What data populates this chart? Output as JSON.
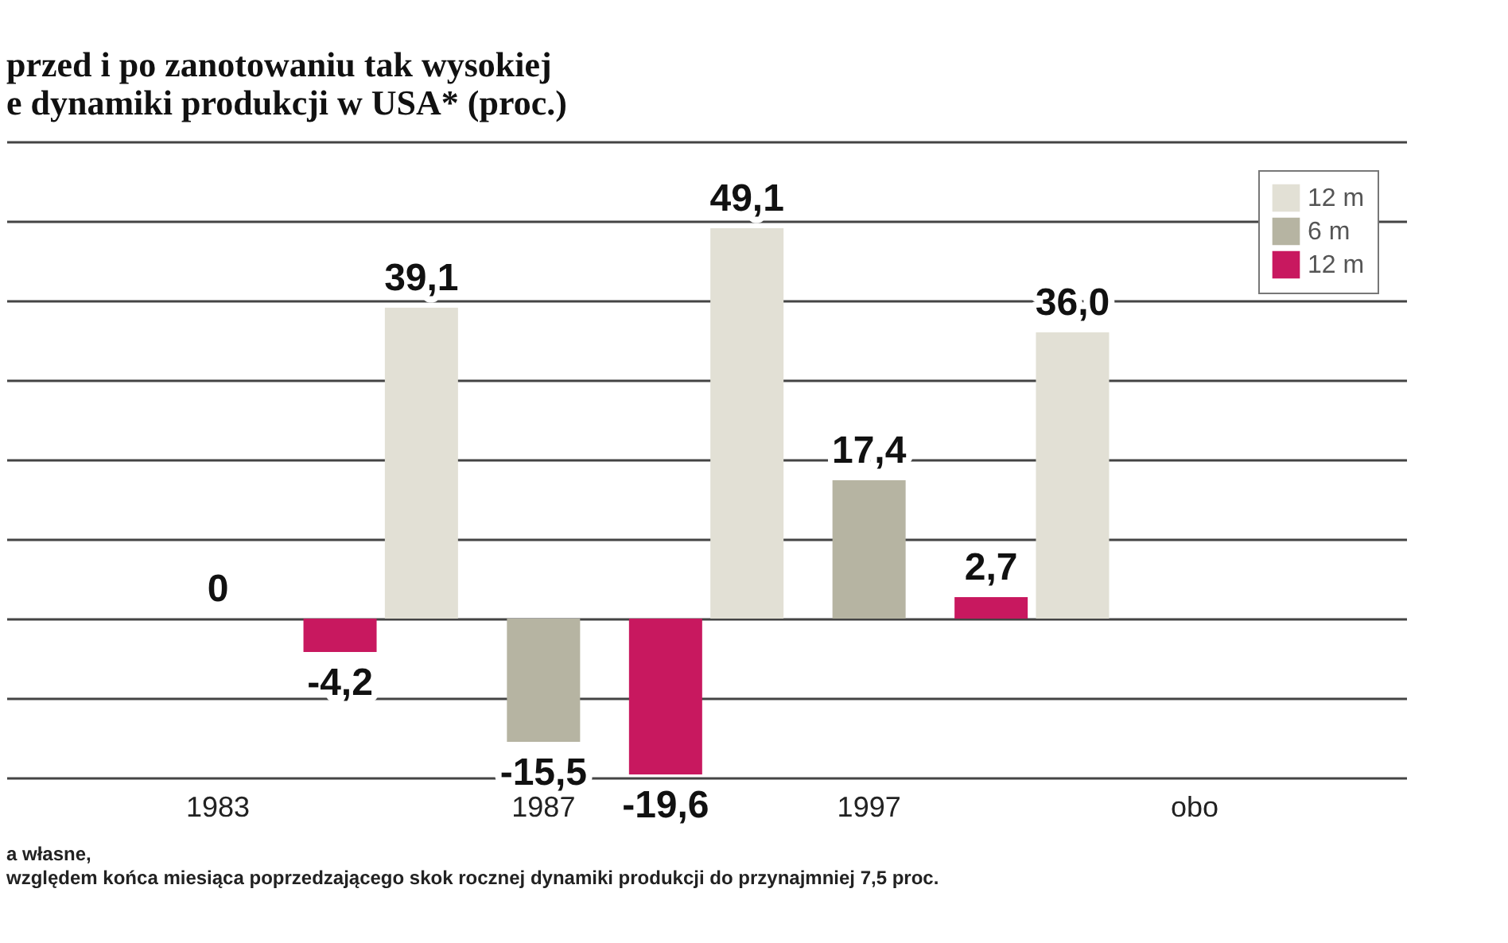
{
  "chart_data": {
    "type": "bar",
    "title": [
      "przed i po zanotowaniu tak wysokiej",
      "e dynamiki produkcji w USA* (proc.)"
    ],
    "categories": [
      "1983",
      "1987",
      "1997",
      "obo"
    ],
    "series": [
      {
        "name": "12 m",
        "color": "#e2e0d5",
        "values": [
          null,
          39.1,
          49.1,
          36.0
        ],
        "value_labels": [
          null,
          "39,1",
          "49,1",
          "36,0"
        ]
      },
      {
        "name": "6 m",
        "color": "#b6b4a2",
        "values": [
          0,
          -15.5,
          17.4,
          null
        ],
        "value_labels": [
          "0",
          "-15,5",
          "17,4",
          null
        ]
      },
      {
        "name": "12 m",
        "color": "#c8185f",
        "values": [
          -4.2,
          -19.6,
          2.7,
          null
        ],
        "value_labels": [
          "-4,2",
          "-19,6",
          "2,7",
          null
        ]
      }
    ],
    "ylim": [
      -20,
      60
    ],
    "yticks": [
      {
        "value": -20,
        "label": null
      },
      {
        "value": -10,
        "label": null
      },
      {
        "value": 0,
        "label": null
      },
      {
        "value": 10,
        "label": null
      },
      {
        "value": 20,
        "label": null
      },
      {
        "value": 30,
        "label": null
      },
      {
        "value": 40,
        "label": null
      },
      {
        "value": 50,
        "label": null
      },
      {
        "value": 60,
        "label": null
      }
    ],
    "grid": "y",
    "tick_labels": "x",
    "legend": "top right",
    "annotations": [
      "a własne,",
      "względem końca miesiąca poprzedzającego skok rocznej dynamiki produkcji do przynajmniej 7,5 proc."
    ]
  }
}
